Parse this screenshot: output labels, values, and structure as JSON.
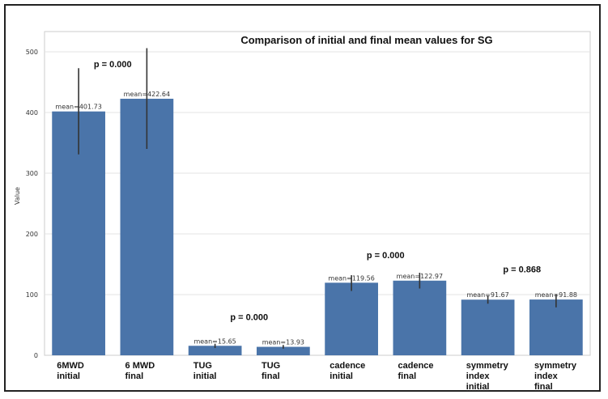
{
  "chart_data": {
    "type": "bar",
    "title": "Comparison of initial and final mean values for SG",
    "ylabel": "Value",
    "xlabel": "",
    "ylim": [
      0,
      520
    ],
    "yticks": [
      0,
      100,
      200,
      300,
      400,
      500
    ],
    "grid": true,
    "bar_color": "#4a74a9",
    "error_color": "#333333",
    "categories": [
      [
        "6MWD",
        "initial"
      ],
      [
        "6 MWD",
        "final"
      ],
      [
        "TUG",
        "initial"
      ],
      [
        "TUG",
        "final"
      ],
      [
        "cadence",
        "initial"
      ],
      [
        "cadence",
        "final"
      ],
      [
        "symmetry",
        "index",
        "initial"
      ],
      [
        "symmetry",
        "index",
        "final"
      ]
    ],
    "values": [
      401.73,
      422.64,
      15.65,
      13.93,
      119.56,
      122.97,
      91.67,
      91.88
    ],
    "error_low": [
      331,
      340,
      12,
      11,
      106,
      110,
      85,
      79
    ],
    "error_high": [
      473,
      506,
      19,
      17,
      132,
      136,
      98,
      101
    ],
    "data_labels": [
      "mean=401.73",
      "mean=422.64",
      "mean=15.65",
      "mean=13.93",
      "mean=119.56",
      "mean=122.97",
      "mean=91.67",
      "mean=91.88"
    ],
    "annotations": [
      {
        "text": "p = 0.000",
        "pair": [
          0,
          1
        ],
        "y": 475
      },
      {
        "text": "p = 0.000",
        "pair": [
          2,
          3
        ],
        "y": 58
      },
      {
        "text": "p = 0.000",
        "pair": [
          4,
          5
        ],
        "y": 160
      },
      {
        "text": "p = 0.868",
        "pair": [
          6,
          7
        ],
        "y": 137
      }
    ]
  }
}
